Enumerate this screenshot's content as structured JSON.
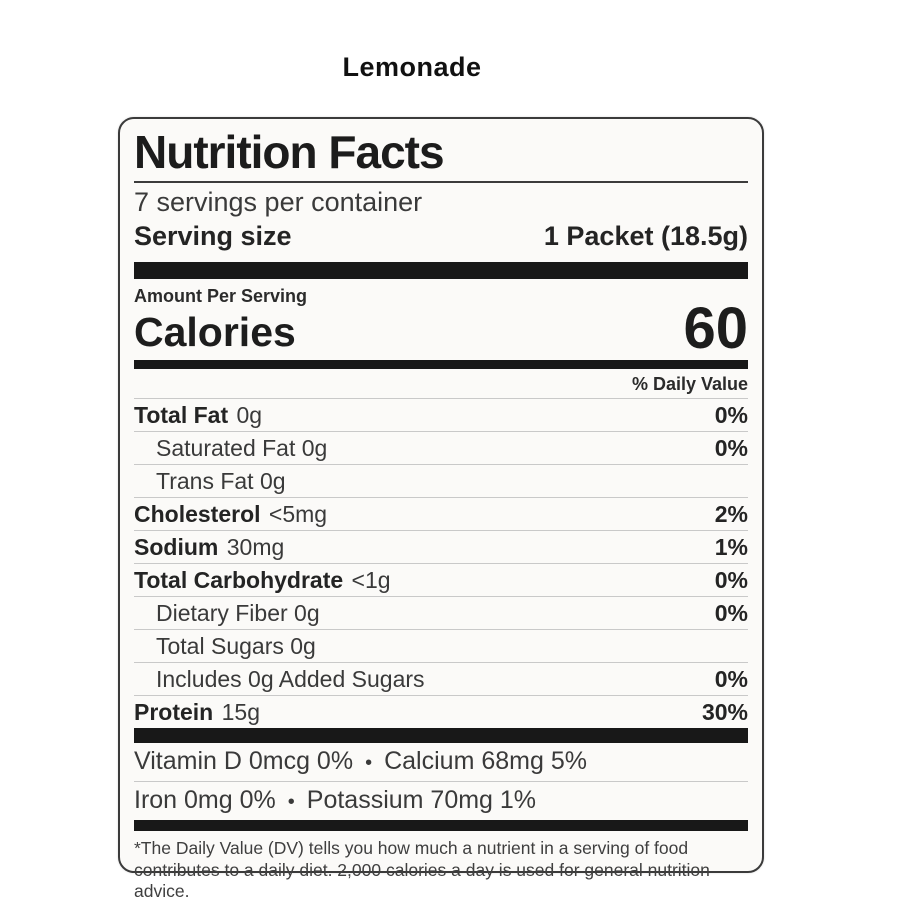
{
  "page": {
    "product_title": "Lemonade"
  },
  "label": {
    "title": "Nutrition Facts",
    "servings_per_container": "7 servings per container",
    "serving_size_label": "Serving size",
    "serving_size_value": "1 Packet (18.5g)",
    "amount_per_serving": "Amount Per Serving",
    "calories_label": "Calories",
    "calories_value": "60",
    "daily_value_header": "% Daily Value",
    "nutrients": [
      {
        "name": "Total Fat",
        "amount": "0g",
        "dv": "0%"
      },
      {
        "name": "Saturated Fat",
        "amount": "0g",
        "dv": "0%"
      },
      {
        "name": "Trans Fat",
        "amount": "0g",
        "dv": ""
      },
      {
        "name": "Cholesterol",
        "amount": "<5mg",
        "dv": "2%"
      },
      {
        "name": "Sodium",
        "amount": "30mg",
        "dv": "1%"
      },
      {
        "name": "Total Carbohydrate",
        "amount": "<1g",
        "dv": "0%"
      },
      {
        "name": "Dietary Fiber",
        "amount": "0g",
        "dv": "0%"
      },
      {
        "name": "Total Sugars",
        "amount": "0g",
        "dv": ""
      },
      {
        "name": "Includes 0g Added Sugars",
        "amount": "",
        "dv": "0%"
      },
      {
        "name": "Protein",
        "amount": "15g",
        "dv": "30%"
      }
    ],
    "micronutrients": [
      {
        "left": "Vitamin D 0mcg 0%",
        "bullet": "•",
        "right": "Calcium 68mg 5%"
      },
      {
        "left": "Iron 0mg 0%",
        "bullet": "•",
        "right": "Potassium 70mg 1%"
      }
    ],
    "footnote": "*The Daily Value (DV) tells you how much a nutrient in a serving of food contributes to a daily diet. 2,000 calories a day is used for general nutrition advice."
  },
  "colors": {
    "label_background": "#fbfaf8",
    "label_border": "#3b3b3b",
    "divider_bar": "#181818",
    "hairline": "#c9c9c9",
    "text": "#222222"
  }
}
